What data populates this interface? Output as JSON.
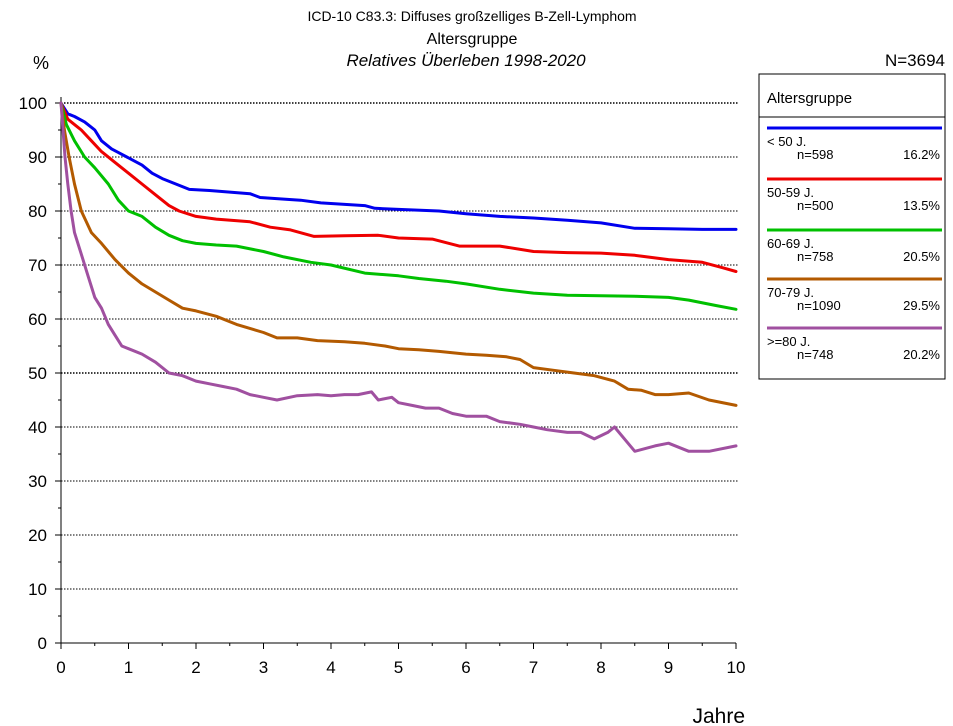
{
  "chart_data": {
    "type": "line",
    "title": "ICD-10 C83.3: Diffuses großzelliges B-Zell-Lymphom",
    "subtitle": "Altersgruppe",
    "subtitle2": "Relatives Überleben 1998-2020",
    "ylabel": "%",
    "xlabel": "Jahre",
    "n_total": "N=3694",
    "xlim": [
      0,
      10
    ],
    "ylim": [
      0,
      100
    ],
    "xticks": [
      0,
      1,
      2,
      3,
      4,
      5,
      6,
      7,
      8,
      9,
      10
    ],
    "yticks": [
      0,
      10,
      20,
      30,
      40,
      50,
      60,
      70,
      80,
      90,
      100
    ],
    "grid": "horizontal dotted",
    "legend": {
      "title": "Altersgruppe",
      "placement": "right"
    },
    "series": [
      {
        "name": "< 50 J.",
        "n": "n=598",
        "pct": "16.2%",
        "color": "#0000ee",
        "points": [
          [
            0,
            100
          ],
          [
            0.05,
            99
          ],
          [
            0.1,
            98
          ],
          [
            0.2,
            97.5
          ],
          [
            0.35,
            96.5
          ],
          [
            0.5,
            95
          ],
          [
            0.6,
            93
          ],
          [
            0.75,
            91.5
          ],
          [
            0.9,
            90.5
          ],
          [
            1.05,
            89.5
          ],
          [
            1.2,
            88.5
          ],
          [
            1.35,
            87
          ],
          [
            1.5,
            86
          ],
          [
            1.7,
            85
          ],
          [
            1.9,
            84
          ],
          [
            2.2,
            83.8
          ],
          [
            2.5,
            83.5
          ],
          [
            2.8,
            83.2
          ],
          [
            2.95,
            82.5
          ],
          [
            3.3,
            82.2
          ],
          [
            3.55,
            82
          ],
          [
            3.85,
            81.5
          ],
          [
            4.5,
            81
          ],
          [
            4.65,
            80.5
          ],
          [
            5,
            80.3
          ],
          [
            5.6,
            80
          ],
          [
            6,
            79.5
          ],
          [
            6.5,
            79
          ],
          [
            7,
            78.7
          ],
          [
            7.5,
            78.3
          ],
          [
            8,
            77.8
          ],
          [
            8.5,
            76.8
          ],
          [
            9,
            76.7
          ],
          [
            9.5,
            76.6
          ],
          [
            10,
            76.6
          ]
        ]
      },
      {
        "name": "50-59 J.",
        "n": "n=500",
        "pct": "13.5%",
        "color": "#ee0000",
        "points": [
          [
            0,
            100
          ],
          [
            0.1,
            97
          ],
          [
            0.2,
            96
          ],
          [
            0.3,
            95
          ],
          [
            0.45,
            93
          ],
          [
            0.6,
            91
          ],
          [
            0.8,
            89
          ],
          [
            1,
            87
          ],
          [
            1.2,
            85
          ],
          [
            1.4,
            83
          ],
          [
            1.6,
            81
          ],
          [
            1.75,
            80
          ],
          [
            2,
            79
          ],
          [
            2.3,
            78.5
          ],
          [
            2.8,
            78
          ],
          [
            3.1,
            77
          ],
          [
            3.4,
            76.5
          ],
          [
            3.75,
            75.3
          ],
          [
            4.2,
            75.4
          ],
          [
            4.7,
            75.5
          ],
          [
            5,
            75
          ],
          [
            5.5,
            74.8
          ],
          [
            5.9,
            73.5
          ],
          [
            6.5,
            73.5
          ],
          [
            7,
            72.5
          ],
          [
            7.5,
            72.3
          ],
          [
            8,
            72.2
          ],
          [
            8.5,
            71.8
          ],
          [
            9,
            71
          ],
          [
            9.5,
            70.5
          ],
          [
            9.8,
            69.5
          ],
          [
            10,
            68.8
          ]
        ]
      },
      {
        "name": "60-69 J.",
        "n": "n=758",
        "pct": "20.5%",
        "color": "#00c000",
        "points": [
          [
            0,
            100
          ],
          [
            0.08,
            96
          ],
          [
            0.2,
            93
          ],
          [
            0.35,
            90
          ],
          [
            0.5,
            88
          ],
          [
            0.7,
            85
          ],
          [
            0.85,
            82
          ],
          [
            1,
            80
          ],
          [
            1.2,
            79
          ],
          [
            1.4,
            77
          ],
          [
            1.6,
            75.5
          ],
          [
            1.8,
            74.5
          ],
          [
            2,
            74
          ],
          [
            2.3,
            73.7
          ],
          [
            2.6,
            73.5
          ],
          [
            3,
            72.5
          ],
          [
            3.3,
            71.5
          ],
          [
            3.7,
            70.5
          ],
          [
            4,
            70
          ],
          [
            4.5,
            68.5
          ],
          [
            5,
            68
          ],
          [
            5.3,
            67.5
          ],
          [
            5.7,
            67
          ],
          [
            6,
            66.5
          ],
          [
            6.5,
            65.5
          ],
          [
            7,
            64.8
          ],
          [
            7.5,
            64.4
          ],
          [
            8,
            64.3
          ],
          [
            8.5,
            64.2
          ],
          [
            9,
            64
          ],
          [
            9.3,
            63.5
          ],
          [
            9.7,
            62.5
          ],
          [
            10,
            61.8
          ]
        ]
      },
      {
        "name": "70-79 J.",
        "n": "n=1090",
        "pct": "29.5%",
        "color": "#b35a00",
        "points": [
          [
            0,
            100
          ],
          [
            0.05,
            95
          ],
          [
            0.12,
            90
          ],
          [
            0.2,
            85
          ],
          [
            0.3,
            80
          ],
          [
            0.45,
            76
          ],
          [
            0.6,
            74
          ],
          [
            0.8,
            71
          ],
          [
            1,
            68.5
          ],
          [
            1.2,
            66.5
          ],
          [
            1.4,
            65
          ],
          [
            1.6,
            63.5
          ],
          [
            1.8,
            62
          ],
          [
            2,
            61.5
          ],
          [
            2.3,
            60.5
          ],
          [
            2.6,
            59
          ],
          [
            3,
            57.5
          ],
          [
            3.2,
            56.5
          ],
          [
            3.5,
            56.5
          ],
          [
            3.8,
            56
          ],
          [
            4.2,
            55.8
          ],
          [
            4.5,
            55.5
          ],
          [
            4.8,
            55
          ],
          [
            5,
            54.5
          ],
          [
            5.3,
            54.3
          ],
          [
            5.6,
            54
          ],
          [
            6,
            53.5
          ],
          [
            6.3,
            53.3
          ],
          [
            6.6,
            53
          ],
          [
            6.8,
            52.5
          ],
          [
            7,
            51
          ],
          [
            7.3,
            50.5
          ],
          [
            7.6,
            50
          ],
          [
            7.9,
            49.5
          ],
          [
            8.2,
            48.5
          ],
          [
            8.4,
            47
          ],
          [
            8.6,
            46.8
          ],
          [
            8.8,
            46
          ],
          [
            9,
            46
          ],
          [
            9.3,
            46.3
          ],
          [
            9.6,
            45
          ],
          [
            10,
            44
          ]
        ]
      },
      {
        "name": ">=80 J.",
        "n": "n=748",
        "pct": "20.2%",
        "color": "#a050a0",
        "points": [
          [
            0,
            100
          ],
          [
            0.03,
            95
          ],
          [
            0.06,
            90
          ],
          [
            0.1,
            85
          ],
          [
            0.15,
            80
          ],
          [
            0.2,
            76
          ],
          [
            0.3,
            72
          ],
          [
            0.4,
            68
          ],
          [
            0.5,
            64
          ],
          [
            0.6,
            62
          ],
          [
            0.7,
            59
          ],
          [
            0.8,
            57
          ],
          [
            0.9,
            55
          ],
          [
            1,
            54.5
          ],
          [
            1.2,
            53.5
          ],
          [
            1.4,
            52
          ],
          [
            1.6,
            50
          ],
          [
            1.8,
            49.5
          ],
          [
            2,
            48.5
          ],
          [
            2.2,
            48
          ],
          [
            2.4,
            47.5
          ],
          [
            2.6,
            47
          ],
          [
            2.8,
            46
          ],
          [
            3,
            45.5
          ],
          [
            3.2,
            45
          ],
          [
            3.5,
            45.8
          ],
          [
            3.8,
            46
          ],
          [
            4,
            45.8
          ],
          [
            4.2,
            46
          ],
          [
            4.4,
            46
          ],
          [
            4.6,
            46.5
          ],
          [
            4.7,
            45
          ],
          [
            4.9,
            45.5
          ],
          [
            5,
            44.5
          ],
          [
            5.2,
            44
          ],
          [
            5.4,
            43.5
          ],
          [
            5.6,
            43.5
          ],
          [
            5.8,
            42.5
          ],
          [
            6,
            42
          ],
          [
            6.3,
            42
          ],
          [
            6.5,
            41
          ],
          [
            6.8,
            40.5
          ],
          [
            7,
            40
          ],
          [
            7.2,
            39.5
          ],
          [
            7.5,
            39
          ],
          [
            7.7,
            39
          ],
          [
            7.9,
            37.8
          ],
          [
            8.1,
            39
          ],
          [
            8.2,
            40
          ],
          [
            8.4,
            37
          ],
          [
            8.5,
            35.5
          ],
          [
            8.8,
            36.5
          ],
          [
            9,
            37
          ],
          [
            9.3,
            35.5
          ],
          [
            9.6,
            35.5
          ],
          [
            10,
            36.5
          ]
        ]
      }
    ]
  }
}
